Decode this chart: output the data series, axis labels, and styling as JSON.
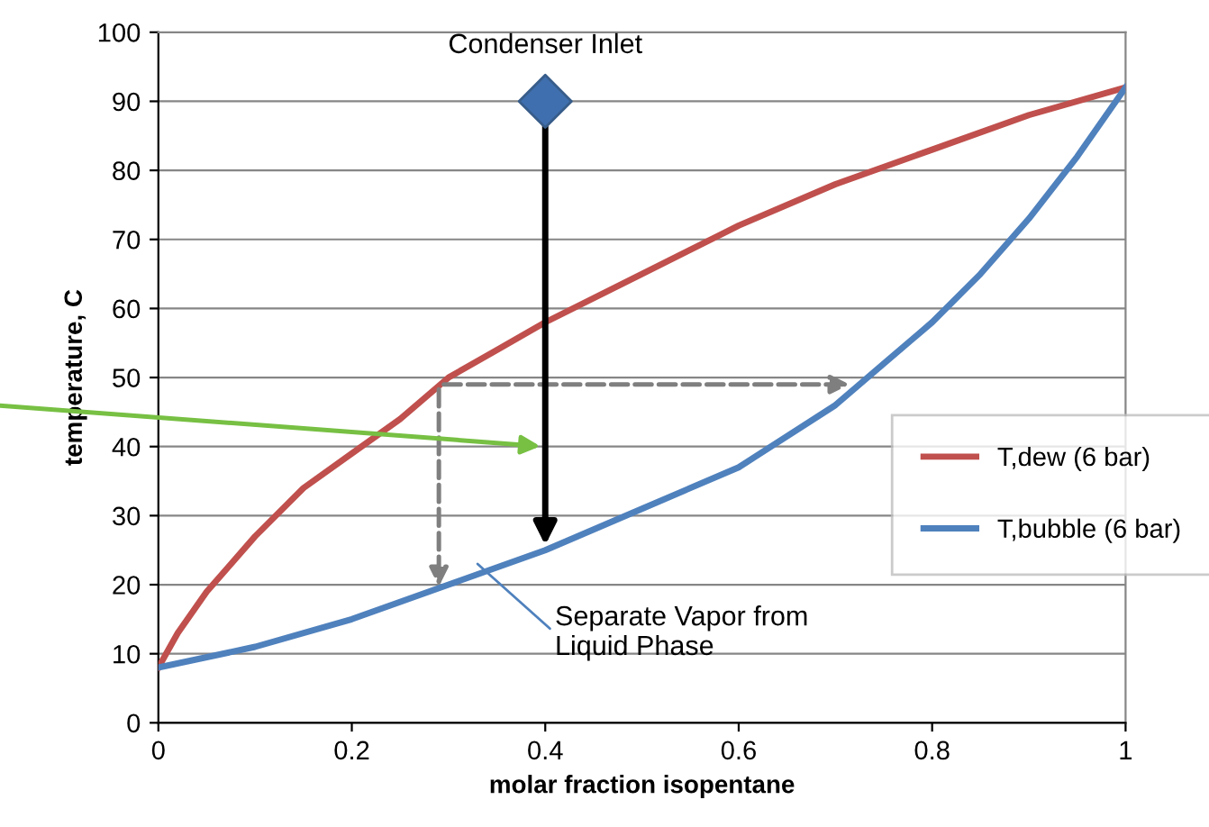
{
  "chart_data": {
    "type": "line",
    "xlabel": "molar fraction isopentane",
    "ylabel": "temperature, C",
    "series": [
      {
        "name": "T,dew (6 bar)",
        "color": "#c0504d",
        "x": [
          0,
          0.02,
          0.05,
          0.1,
          0.15,
          0.2,
          0.25,
          0.3,
          0.35,
          0.4,
          0.5,
          0.6,
          0.7,
          0.8,
          0.9,
          1
        ],
        "values": [
          8,
          13,
          19,
          27,
          34,
          39,
          44,
          50,
          54,
          58,
          65,
          72,
          78,
          83,
          88,
          92
        ]
      },
      {
        "name": "T,bubble (6 bar)",
        "color": "#4f81bd",
        "x": [
          0,
          0.1,
          0.2,
          0.3,
          0.4,
          0.5,
          0.6,
          0.7,
          0.75,
          0.8,
          0.85,
          0.9,
          0.95,
          1
        ],
        "values": [
          8,
          11,
          15,
          20,
          25,
          31,
          37,
          46,
          52,
          58,
          65,
          73,
          82,
          92
        ]
      },
      {
        "type": "scatter",
        "color": "#3f6fae",
        "marker": "diamond",
        "x": [
          0.4
        ],
        "values": [
          90
        ]
      }
    ],
    "annotations": [
      {
        "text": "Condenser Inlet",
        "x": 0.4,
        "y": 90
      },
      {
        "text": "Separate Vapor from\nLiquid Phase",
        "x": 0.33,
        "y": 23
      }
    ],
    "xlim": [
      0,
      1
    ],
    "ylim": [
      0,
      100
    ],
    "xticks": [
      0,
      0.2,
      0.4,
      0.6,
      0.8,
      1
    ],
    "yticks": [
      0,
      10,
      20,
      30,
      40,
      50,
      60,
      70,
      80,
      90,
      100
    ],
    "grid": "y",
    "legend": "right",
    "marker": "none",
    "line_style": "solid"
  }
}
